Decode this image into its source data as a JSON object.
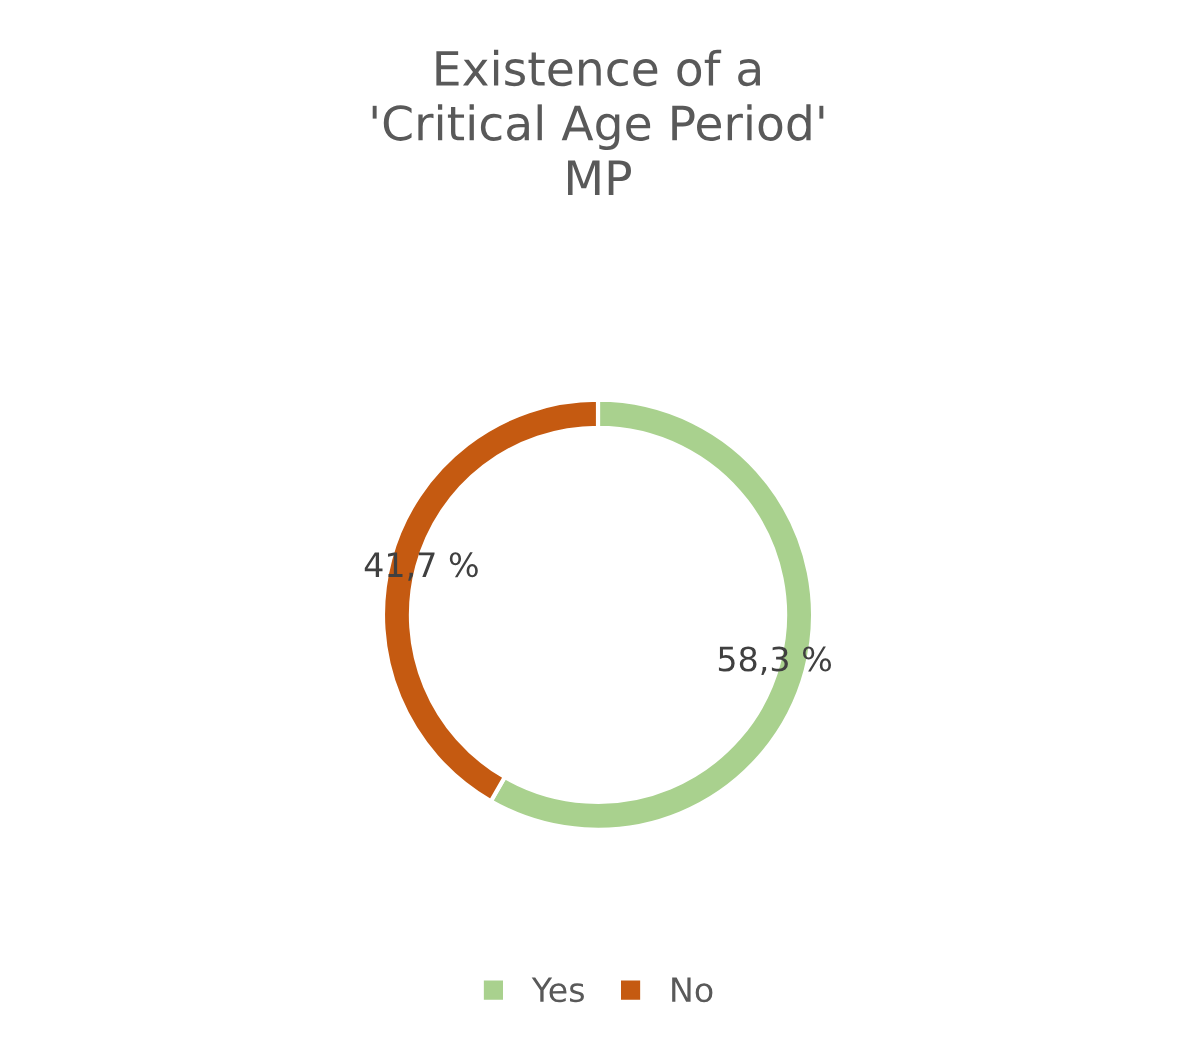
{
  "chart_data": {
    "type": "donut",
    "title": "Existence of a\n'Critical Age Period'\nMP",
    "categories": [
      "Yes",
      "No"
    ],
    "values": [
      58.3,
      41.7
    ],
    "value_labels": [
      "58,3 %",
      "41,7 %"
    ],
    "colors": [
      "#a9d18e",
      "#c55a11"
    ],
    "legend": "bottom"
  }
}
